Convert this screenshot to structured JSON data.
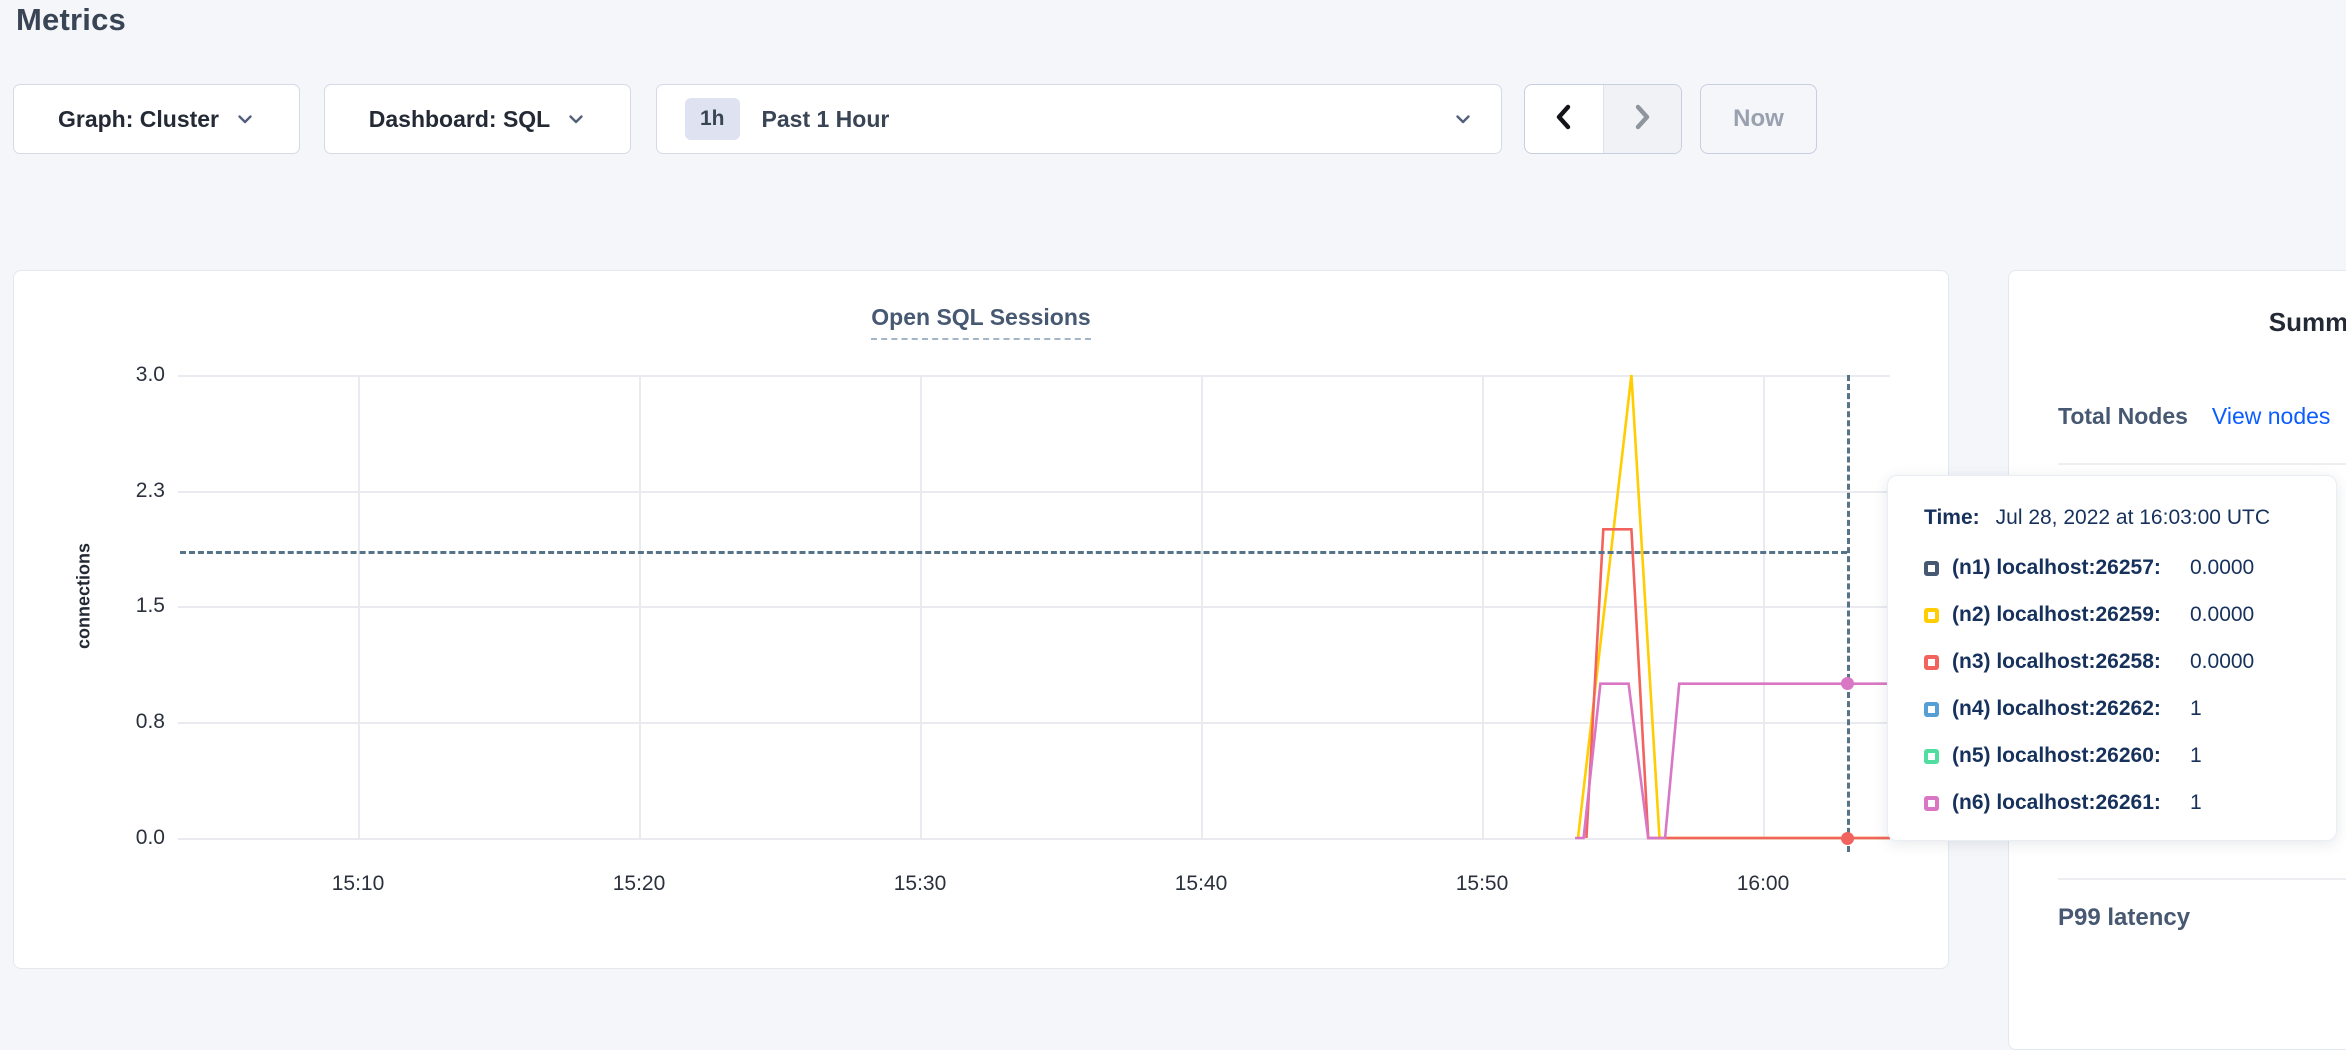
{
  "page": {
    "title": "Metrics"
  },
  "toolbar": {
    "graph_dropdown": "Graph: Cluster",
    "dashboard_dropdown": "Dashboard: SQL",
    "time_range_badge": "1h",
    "time_range_label": "Past 1 Hour",
    "now_button": "Now"
  },
  "chart_data": {
    "type": "line",
    "title": "Open SQL Sessions",
    "ylabel": "connections",
    "ylim": [
      0,
      3
    ],
    "yticks": [
      "3.0",
      "2.3",
      "1.5",
      "0.8",
      "0.0"
    ],
    "xticks": [
      "15:10",
      "15:20",
      "15:30",
      "15:40",
      "15:50",
      "16:00"
    ],
    "xrange_minutes": [
      3.6,
      64.5
    ],
    "grid": true,
    "series": [
      {
        "name": "(n1) localhost:26257",
        "color": "#475872",
        "points": null
      },
      {
        "name": "(n2) localhost:26259",
        "color": "#ffcd00",
        "points": [
          [
            53.4,
            0
          ],
          [
            55.3,
            3
          ],
          [
            56.3,
            0
          ],
          [
            64.5,
            0
          ]
        ]
      },
      {
        "name": "(n3) localhost:26258",
        "color": "#f2635e",
        "points": [
          [
            53.7,
            0
          ],
          [
            54.3,
            2
          ],
          [
            55.3,
            2
          ],
          [
            55.9,
            0
          ],
          [
            64.5,
            0
          ]
        ]
      },
      {
        "name": "(n4) localhost:26262",
        "color": "#569fd5",
        "points": null
      },
      {
        "name": "(n5) localhost:26260",
        "color": "#50dea0",
        "points": null
      },
      {
        "name": "(n6) localhost:26261",
        "color": "#d977c4",
        "points": [
          [
            53.3,
            0
          ],
          [
            53.6,
            0
          ],
          [
            54.2,
            1
          ],
          [
            55.2,
            1
          ],
          [
            55.9,
            0
          ],
          [
            56.5,
            0
          ],
          [
            57,
            1
          ],
          [
            64.5,
            1
          ]
        ]
      }
    ],
    "markers": [
      {
        "t": 63,
        "v": 1,
        "color": "#d977c4"
      },
      {
        "t": 63,
        "v": 0,
        "color": "#f2635e"
      }
    ],
    "crosshair": {
      "time": "16:03",
      "hover_value": 1.85
    }
  },
  "tooltip": {
    "time_label": "Time:",
    "time_value": "Jul 28, 2022 at 16:03:00 UTC",
    "rows": [
      {
        "label": "(n1) localhost:26257:",
        "value": "0.0000",
        "color": "#475872"
      },
      {
        "label": "(n2) localhost:26259:",
        "value": "0.0000",
        "color": "#ffcd00"
      },
      {
        "label": "(n3) localhost:26258:",
        "value": "0.0000",
        "color": "#f2635e"
      },
      {
        "label": "(n4) localhost:26262:",
        "value": "1",
        "color": "#569fd5"
      },
      {
        "label": "(n5) localhost:26260:",
        "value": "1",
        "color": "#50dea0"
      },
      {
        "label": "(n6) localhost:26261:",
        "value": "1",
        "color": "#d977c4"
      }
    ]
  },
  "summary": {
    "title": "Summary",
    "total_nodes_label": "Total Nodes",
    "view_nodes_link": "View nodes",
    "p99_label": "P99 latency",
    "link_color": "#0b5dff"
  },
  "colors": {
    "accent_link": "#0b5dff",
    "crosshair": "#567387",
    "heading": "#394455",
    "page_background": "#f4f6fa"
  }
}
